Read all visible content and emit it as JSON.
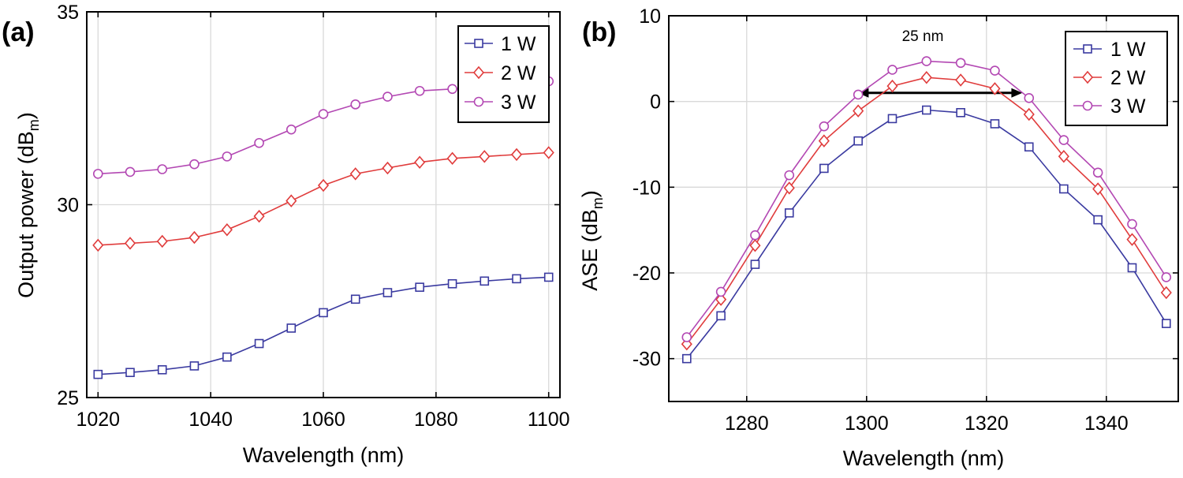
{
  "colors": {
    "series1": "#3a3aa0",
    "series2": "#e03c3c",
    "series3": "#b348b3",
    "axis": "#000000",
    "grid": "#d9d9d9",
    "fill": "#ffffff"
  },
  "chart_data": [
    {
      "type": "line",
      "panel_label": "(a)",
      "xlabel": "Wavelength (nm)",
      "ylabel_main": "Output power (dB",
      "ylabel_sub": "m",
      "ylabel_close": ")",
      "xlim": [
        1018,
        1102
      ],
      "ylim": [
        25,
        35
      ],
      "xticks": [
        1020,
        1040,
        1060,
        1080,
        1100
      ],
      "yticks": [
        25,
        30,
        35
      ],
      "grid": true,
      "legend_position": "top-right",
      "x": [
        1020,
        1025.7,
        1031.4,
        1037.1,
        1042.9,
        1048.6,
        1054.3,
        1060,
        1065.7,
        1071.4,
        1077.1,
        1082.9,
        1088.6,
        1094.3,
        1100
      ],
      "series": [
        {
          "name": "1 W",
          "marker": "square",
          "values": [
            25.6,
            25.65,
            25.72,
            25.82,
            26.05,
            26.4,
            26.8,
            27.2,
            27.55,
            27.72,
            27.86,
            27.95,
            28.02,
            28.08,
            28.12
          ]
        },
        {
          "name": "2 W",
          "marker": "diamond",
          "values": [
            28.95,
            29.0,
            29.05,
            29.15,
            29.35,
            29.7,
            30.1,
            30.5,
            30.8,
            30.95,
            31.1,
            31.2,
            31.25,
            31.3,
            31.35
          ]
        },
        {
          "name": "3 W",
          "marker": "circle",
          "values": [
            30.8,
            30.85,
            30.92,
            31.05,
            31.25,
            31.6,
            31.95,
            32.35,
            32.6,
            32.8,
            32.95,
            33.0,
            33.05,
            33.1,
            33.2
          ]
        }
      ]
    },
    {
      "type": "line",
      "panel_label": "(b)",
      "xlabel": "Wavelength (nm)",
      "ylabel_main": "ASE (dB",
      "ylabel_sub": "m",
      "ylabel_close": ")",
      "xlim": [
        1267,
        1352
      ],
      "ylim": [
        -35,
        10
      ],
      "xticks": [
        1280,
        1300,
        1320,
        1340
      ],
      "yticks": [
        -30,
        -20,
        -10,
        0,
        10
      ],
      "grid": true,
      "legend_position": "top-right",
      "annotation": {
        "text": "25 nm",
        "arrow_from": [
          1298.5,
          1
        ],
        "arrow_to": [
          1326,
          1
        ]
      },
      "x": [
        1270,
        1275.7,
        1281.4,
        1287.1,
        1292.9,
        1298.6,
        1304.3,
        1310,
        1315.7,
        1321.4,
        1327.1,
        1332.9,
        1338.6,
        1344.3,
        1350
      ],
      "series": [
        {
          "name": "1 W",
          "marker": "square",
          "values": [
            -30,
            -25,
            -19,
            -13,
            -7.8,
            -4.6,
            -2,
            -1,
            -1.3,
            -2.6,
            -5.3,
            -10.2,
            -13.8,
            -19.4,
            -25.9
          ]
        },
        {
          "name": "2 W",
          "marker": "diamond",
          "values": [
            -28.3,
            -23.1,
            -16.8,
            -10.1,
            -4.6,
            -1.1,
            1.8,
            2.8,
            2.5,
            1.5,
            -1.5,
            -6.4,
            -10.2,
            -16.1,
            -22.3
          ]
        },
        {
          "name": "3 W",
          "marker": "circle",
          "values": [
            -27.5,
            -22.2,
            -15.6,
            -8.6,
            -2.9,
            0.8,
            3.7,
            4.7,
            4.5,
            3.6,
            0.4,
            -4.5,
            -8.3,
            -14.3,
            -20.5
          ]
        }
      ]
    }
  ]
}
